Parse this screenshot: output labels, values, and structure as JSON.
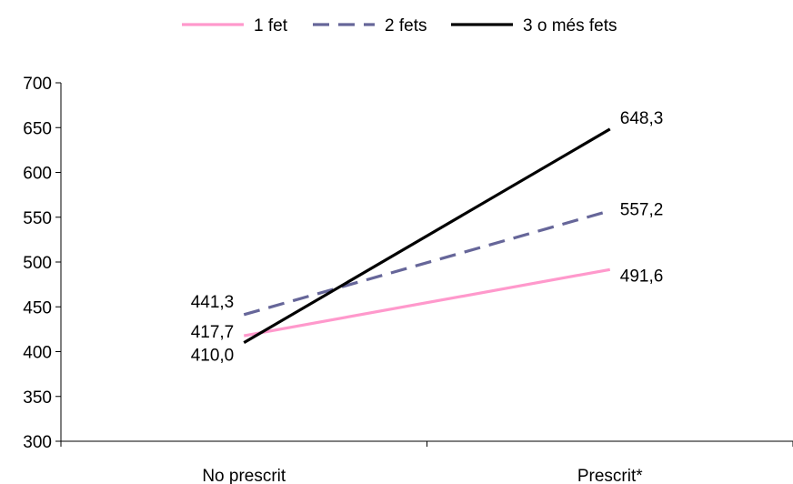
{
  "chart_data": {
    "type": "line",
    "categories": [
      "No prescrit",
      "Prescrit*"
    ],
    "ylim": [
      300,
      700
    ],
    "yticks": [
      "300",
      "350",
      "400",
      "450",
      "500",
      "550",
      "600",
      "650",
      "700"
    ],
    "grid": false,
    "legend_position": "top",
    "series": [
      {
        "name": "1 fet",
        "values": [
          417.7,
          491.6
        ],
        "labels": [
          "417,7",
          "491,6"
        ],
        "color": "#ff99cc",
        "dash": "solid"
      },
      {
        "name": "2 fets",
        "values": [
          441.3,
          557.2
        ],
        "labels": [
          "441,3",
          "557,2"
        ],
        "color": "#666699",
        "dash": "dashed"
      },
      {
        "name": "3 o més fets",
        "values": [
          410.0,
          648.3
        ],
        "labels": [
          "410,0",
          "648,3"
        ],
        "color": "#000000",
        "dash": "solid"
      }
    ]
  }
}
